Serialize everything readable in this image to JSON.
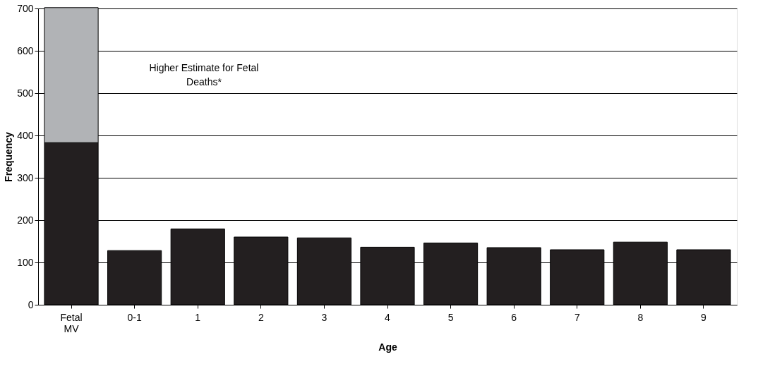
{
  "chart_data": {
    "type": "bar",
    "stacked": true,
    "xlabel": "Age",
    "ylabel": "Frequency",
    "categories": [
      "Fetal MV",
      "0-1",
      "1",
      "2",
      "3",
      "4",
      "5",
      "6",
      "7",
      "8",
      "9"
    ],
    "series": [
      {
        "color": "#231f20",
        "values": [
          383,
          128,
          179,
          160,
          158,
          136,
          146,
          135,
          130,
          148,
          130
        ]
      },
      {
        "color": "#b1b3b6",
        "values": [
          319,
          null,
          null,
          null,
          null,
          null,
          null,
          null,
          null,
          null,
          null
        ]
      }
    ],
    "ylim": [
      0,
      700
    ],
    "yticks": [
      0,
      100,
      200,
      300,
      400,
      500,
      600,
      700
    ],
    "grid": "y",
    "annotations": [
      "Higher Estimate for Fetal\nDeaths*"
    ]
  }
}
